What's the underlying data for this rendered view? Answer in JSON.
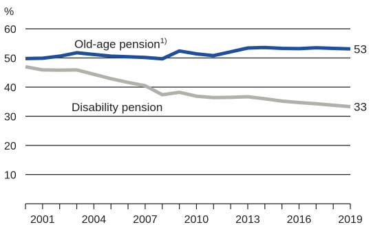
{
  "chart_data": {
    "type": "line",
    "y_unit_label": "%",
    "x": [
      2000,
      2001,
      2002,
      2003,
      2004,
      2005,
      2006,
      2007,
      2008,
      2009,
      2010,
      2011,
      2012,
      2013,
      2014,
      2015,
      2016,
      2017,
      2018,
      2019
    ],
    "x_tick_labels": [
      "2001",
      "2004",
      "2007",
      "2010",
      "2013",
      "2016",
      "2019"
    ],
    "x_tick_values": [
      2001,
      2004,
      2007,
      2010,
      2013,
      2016,
      2019
    ],
    "y_ticks": [
      10,
      20,
      30,
      40,
      50,
      60
    ],
    "ylim": [
      0,
      60
    ],
    "grid": "horizontal",
    "series": [
      {
        "name": "Old-age pension",
        "name_superscript": "1)",
        "color": "#1f4e9c",
        "end_label": "53",
        "values": [
          49.8,
          49.9,
          50.6,
          51.8,
          51.2,
          50.6,
          50.4,
          50.2,
          49.7,
          52.4,
          51.4,
          50.8,
          52.1,
          53.4,
          53.6,
          53.3,
          53.2,
          53.5,
          53.3,
          53.1
        ]
      },
      {
        "name": "Disability pension",
        "color": "#b3b0ab",
        "end_label": "33",
        "values": [
          47.0,
          45.9,
          45.8,
          45.9,
          44.4,
          42.9,
          41.6,
          40.5,
          37.4,
          38.2,
          36.9,
          36.4,
          36.5,
          36.7,
          36.0,
          35.2,
          34.7,
          34.3,
          33.8,
          33.3
        ]
      }
    ]
  }
}
